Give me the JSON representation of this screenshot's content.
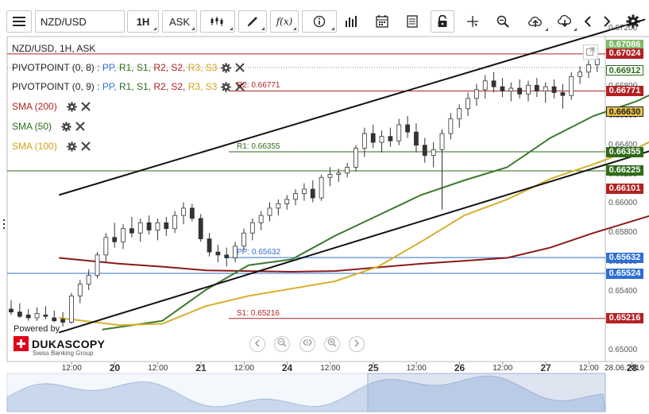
{
  "toolbar": {
    "symbol_value": "NZD/USD",
    "timeframe": "1H",
    "price_type": "ASK",
    "icons": [
      "menu-icon",
      "chart-type-icon",
      "draw-pen-icon",
      "function-icon",
      "info-icon",
      "bar-volume-icon",
      "calendar-icon",
      "document-icon",
      "lock-icon",
      "crosshair-icon",
      "zoom-icon",
      "cloud-upload-icon",
      "cloud-download-icon",
      "chevron-left-icon",
      "chevron-right-icon",
      "gear-icon"
    ]
  },
  "chart_data": {
    "type": "candlestick",
    "title": "NZD/USD, 1H, ASK",
    "ylim": [
      0.6496,
      0.6726
    ],
    "y_ticks": [
      "0.67200",
      "0.67000",
      "0.66800",
      "0.66600",
      "0.66400",
      "0.66200",
      "0.66000",
      "0.65800",
      "0.65600",
      "0.65400",
      "0.65200",
      "0.65000"
    ],
    "x_labels": [
      {
        "text": "12:00",
        "x": 0.5,
        "day": false
      },
      {
        "text": "20",
        "x": 1.0,
        "day": true
      },
      {
        "text": "12:00",
        "x": 1.5,
        "day": false
      },
      {
        "text": "21",
        "x": 2.0,
        "day": true
      },
      {
        "text": "12:00",
        "x": 2.5,
        "day": false
      },
      {
        "text": "24",
        "x": 3.0,
        "day": true
      },
      {
        "text": "12:00",
        "x": 3.5,
        "day": false
      },
      {
        "text": "25",
        "x": 4.0,
        "day": true
      },
      {
        "text": "12:00",
        "x": 4.5,
        "day": false
      },
      {
        "text": "26",
        "x": 5.0,
        "day": true
      },
      {
        "text": "12:00",
        "x": 5.5,
        "day": false
      },
      {
        "text": "27",
        "x": 6.0,
        "day": true
      },
      {
        "text": "12:00",
        "x": 6.5,
        "day": false
      },
      {
        "text": "28",
        "x": 7.0,
        "day": true
      }
    ],
    "date_label": "28.06.2019",
    "levels": [
      {
        "name": "R2",
        "label": "R2: 0.66771",
        "value": 0.66771,
        "color": "#b22222"
      },
      {
        "name": "R1",
        "label": "R1: 0.66355",
        "value": 0.66355,
        "color": "#2e6b1a"
      },
      {
        "name": "PP",
        "label": "PP: 0.65632",
        "value": 0.65632,
        "color": "#2f6fd1"
      },
      {
        "name": "S1",
        "label": "S1: 0.65216",
        "value": 0.65216,
        "color": "#b22222"
      }
    ],
    "extra_lines": [
      {
        "value": 0.67024,
        "color": "#b22222"
      },
      {
        "value": 0.66225,
        "color": "#2e6b1a"
      },
      {
        "value": 0.65524,
        "color": "#2f6fd1"
      }
    ],
    "price_tags": [
      {
        "text": "0.67086",
        "value": 0.67086,
        "bg": "#7fb86a",
        "fg": "#ffffff"
      },
      {
        "text": "0.67024",
        "value": 0.67024,
        "bg": "#b22222",
        "fg": "#ffffff"
      },
      {
        "text": "0.66912",
        "value": 0.66912,
        "bg": "#ffffff",
        "fg": "#2e6b1a",
        "border": "#2e6b1a"
      },
      {
        "text": "0.66771",
        "value": 0.66771,
        "bg": "#b22222",
        "fg": "#ffffff"
      },
      {
        "text": "0.66630",
        "value": 0.6663,
        "bg": "#e8c24a",
        "fg": "#222222",
        "border": "#222222"
      },
      {
        "text": "0.66355",
        "value": 0.66355,
        "bg": "#2e6b1a",
        "fg": "#ffffff"
      },
      {
        "text": "0.66225",
        "value": 0.66225,
        "bg": "#2e6b1a",
        "fg": "#ffffff"
      },
      {
        "text": "0.66101",
        "value": 0.66101,
        "bg": "#b22222",
        "fg": "#ffffff"
      },
      {
        "text": "0.65632",
        "value": 0.65632,
        "bg": "#2f6fd1",
        "fg": "#ffffff"
      },
      {
        "text": "0.65524",
        "value": 0.65524,
        "bg": "#2f6fd1",
        "fg": "#ffffff"
      },
      {
        "text": "0.65216",
        "value": 0.65216,
        "bg": "#b22222",
        "fg": "#ffffff"
      }
    ],
    "sma_lines": [
      {
        "name": "SMA (200)",
        "color": "#8b1a1a",
        "points": [
          [
            -0.2,
            0.6563
          ],
          [
            0.5,
            0.6559
          ],
          [
            1.0,
            0.6557
          ],
          [
            1.5,
            0.65545
          ],
          [
            2.0,
            0.6554
          ],
          [
            2.5,
            0.65535
          ],
          [
            3.0,
            0.6554
          ],
          [
            3.5,
            0.65565
          ],
          [
            4.0,
            0.6559
          ],
          [
            4.5,
            0.6561
          ],
          [
            5.0,
            0.6563
          ],
          [
            5.5,
            0.657
          ],
          [
            6.0,
            0.658
          ],
          [
            6.5,
            0.6589
          ],
          [
            7.0,
            0.6598
          ],
          [
            7.15,
            0.6601
          ]
        ]
      },
      {
        "name": "SMA (50)",
        "color": "#3a7a2a",
        "points": [
          [
            0.3,
            0.6514
          ],
          [
            1.0,
            0.652
          ],
          [
            1.5,
            0.6541
          ],
          [
            2.0,
            0.6558
          ],
          [
            2.5,
            0.6562
          ],
          [
            3.0,
            0.6578
          ],
          [
            3.5,
            0.6592
          ],
          [
            4.0,
            0.6606
          ],
          [
            4.5,
            0.6616
          ],
          [
            5.0,
            0.6625
          ],
          [
            5.5,
            0.6645
          ],
          [
            6.0,
            0.666
          ],
          [
            6.5,
            0.667
          ],
          [
            7.0,
            0.6684
          ],
          [
            7.15,
            0.6691
          ]
        ]
      },
      {
        "name": "SMA (100)",
        "color": "#d4b02c",
        "points": [
          [
            -0.2,
            0.6522
          ],
          [
            0.5,
            0.6517
          ],
          [
            1.0,
            0.6518
          ],
          [
            1.5,
            0.653
          ],
          [
            2.0,
            0.6537
          ],
          [
            2.5,
            0.6542
          ],
          [
            3.0,
            0.6547
          ],
          [
            3.5,
            0.6557
          ],
          [
            4.0,
            0.6574
          ],
          [
            4.5,
            0.6592
          ],
          [
            5.0,
            0.6603
          ],
          [
            5.5,
            0.6617
          ],
          [
            6.0,
            0.6627
          ],
          [
            6.5,
            0.6638
          ],
          [
            7.0,
            0.6652
          ],
          [
            7.15,
            0.6663
          ]
        ]
      }
    ],
    "trend_lines": [
      {
        "points": [
          [
            -0.2,
            0.6606
          ],
          [
            6.6,
            0.6726
          ]
        ],
        "color": "#111111"
      },
      {
        "points": [
          [
            -0.2,
            0.6512
          ],
          [
            7.15,
            0.6645
          ]
        ],
        "color": "#111111"
      }
    ],
    "series": [
      {
        "name": "candles",
        "ohlc": [
          [
            0.0,
            0.6528,
            0.6534,
            0.6524,
            0.6526
          ],
          [
            0.1,
            0.6526,
            0.6532,
            0.6522,
            0.6523
          ],
          [
            0.2,
            0.6524,
            0.6528,
            0.652,
            0.6522
          ],
          [
            0.3,
            0.6522,
            0.6529,
            0.652,
            0.6525
          ],
          [
            0.4,
            0.6524,
            0.653,
            0.6521,
            0.6523
          ],
          [
            0.5,
            0.6522,
            0.6527,
            0.6519,
            0.652
          ],
          [
            0.6,
            0.6521,
            0.6526,
            0.6516,
            0.6519
          ],
          [
            0.7,
            0.6519,
            0.6539,
            0.6518,
            0.6537
          ],
          [
            0.8,
            0.6537,
            0.6548,
            0.6532,
            0.6545
          ],
          [
            0.9,
            0.6545,
            0.6555,
            0.6541,
            0.6551
          ],
          [
            1.0,
            0.6551,
            0.6567,
            0.6549,
            0.6565
          ],
          [
            1.1,
            0.6565,
            0.658,
            0.656,
            0.6577
          ],
          [
            1.2,
            0.6577,
            0.6587,
            0.657,
            0.6574
          ],
          [
            1.3,
            0.6574,
            0.6586,
            0.6569,
            0.6583
          ],
          [
            1.4,
            0.6583,
            0.6591,
            0.6577,
            0.658
          ],
          [
            1.5,
            0.658,
            0.659,
            0.6574,
            0.6587
          ],
          [
            1.6,
            0.6587,
            0.6592,
            0.6579,
            0.6582
          ],
          [
            1.7,
            0.6582,
            0.659,
            0.6575,
            0.6587
          ],
          [
            1.8,
            0.6587,
            0.6591,
            0.6578,
            0.6583
          ],
          [
            1.9,
            0.6583,
            0.6595,
            0.658,
            0.6592
          ],
          [
            2.0,
            0.6592,
            0.6601,
            0.6586,
            0.6597
          ],
          [
            2.1,
            0.6597,
            0.66,
            0.6588,
            0.659
          ],
          [
            2.2,
            0.659,
            0.6593,
            0.6574,
            0.6576
          ],
          [
            2.3,
            0.6576,
            0.658,
            0.6564,
            0.6567
          ],
          [
            2.4,
            0.6567,
            0.6572,
            0.656,
            0.6565
          ],
          [
            2.5,
            0.6565,
            0.657,
            0.6557,
            0.6563
          ],
          [
            2.6,
            0.6563,
            0.6574,
            0.656,
            0.6571
          ],
          [
            2.7,
            0.6571,
            0.6583,
            0.6568,
            0.658
          ],
          [
            2.8,
            0.658,
            0.659,
            0.6575,
            0.6587
          ],
          [
            2.9,
            0.6587,
            0.6595,
            0.6582,
            0.6592
          ],
          [
            3.0,
            0.6592,
            0.6601,
            0.6588,
            0.6597
          ],
          [
            3.1,
            0.6597,
            0.6603,
            0.6592,
            0.66
          ],
          [
            3.2,
            0.66,
            0.6606,
            0.6596,
            0.6603
          ],
          [
            3.3,
            0.6603,
            0.661,
            0.6599,
            0.6607
          ],
          [
            3.4,
            0.6607,
            0.6614,
            0.6602,
            0.661
          ],
          [
            3.5,
            0.661,
            0.6616,
            0.6601,
            0.6604
          ],
          [
            3.6,
            0.6604,
            0.662,
            0.6602,
            0.6618
          ],
          [
            3.7,
            0.6618,
            0.6625,
            0.6612,
            0.662
          ],
          [
            3.8,
            0.662,
            0.6624,
            0.6615,
            0.6621
          ],
          [
            3.9,
            0.6621,
            0.6628,
            0.6618,
            0.6625
          ],
          [
            4.0,
            0.6625,
            0.664,
            0.6622,
            0.6638
          ],
          [
            4.1,
            0.6638,
            0.6652,
            0.6632,
            0.6648
          ],
          [
            4.2,
            0.6648,
            0.6654,
            0.6638,
            0.6642
          ],
          [
            4.3,
            0.6642,
            0.665,
            0.6635,
            0.6646
          ],
          [
            4.4,
            0.6646,
            0.6652,
            0.6639,
            0.6643
          ],
          [
            4.5,
            0.6643,
            0.6658,
            0.664,
            0.6654
          ],
          [
            4.6,
            0.6654,
            0.666,
            0.6645,
            0.6649
          ],
          [
            4.7,
            0.6649,
            0.6655,
            0.6635,
            0.664
          ],
          [
            4.8,
            0.664,
            0.6645,
            0.6628,
            0.6633
          ],
          [
            4.9,
            0.6633,
            0.6642,
            0.6625,
            0.6637
          ],
          [
            5.0,
            0.6637,
            0.6651,
            0.6596,
            0.6648
          ],
          [
            5.1,
            0.6648,
            0.6662,
            0.6644,
            0.6658
          ],
          [
            5.2,
            0.6658,
            0.6668,
            0.6652,
            0.6665
          ],
          [
            5.3,
            0.6665,
            0.6676,
            0.666,
            0.6672
          ],
          [
            5.4,
            0.6672,
            0.6682,
            0.6667,
            0.6678
          ],
          [
            5.5,
            0.6678,
            0.6688,
            0.6672,
            0.6684
          ],
          [
            5.6,
            0.6684,
            0.669,
            0.6676,
            0.668
          ],
          [
            5.7,
            0.668,
            0.6686,
            0.6673,
            0.6677
          ],
          [
            5.8,
            0.6677,
            0.6683,
            0.667,
            0.6679
          ],
          [
            5.9,
            0.6679,
            0.6685,
            0.6672,
            0.6675
          ],
          [
            6.0,
            0.6675,
            0.6684,
            0.667,
            0.6681
          ],
          [
            6.1,
            0.6681,
            0.6686,
            0.6673,
            0.6677
          ],
          [
            6.2,
            0.6677,
            0.6683,
            0.6669,
            0.668
          ],
          [
            6.3,
            0.668,
            0.6685,
            0.6672,
            0.6676
          ],
          [
            6.4,
            0.6676,
            0.6682,
            0.6665,
            0.6674
          ],
          [
            6.5,
            0.6674,
            0.669,
            0.6671,
            0.6687
          ],
          [
            6.6,
            0.6687,
            0.6694,
            0.6682,
            0.669
          ],
          [
            6.7,
            0.669,
            0.6698,
            0.6686,
            0.6695
          ],
          [
            6.8,
            0.6695,
            0.6702,
            0.669,
            0.6699
          ],
          [
            6.9,
            0.6699,
            0.6703,
            0.6694,
            0.67
          ],
          [
            7.0,
            0.67,
            0.6709,
            0.6695,
            0.6702
          ],
          [
            7.05,
            0.6702,
            0.6711,
            0.669,
            0.6695
          ],
          [
            7.1,
            0.6695,
            0.6708,
            0.6692,
            0.6706
          ]
        ]
      }
    ]
  },
  "legend": {
    "pivot1": {
      "name": "PIVOTPOINT (0, 8)",
      "sep": " : ",
      "items": [
        {
          "t": "PP",
          "c": "#2f6fd1"
        },
        {
          "t": "R1",
          "c": "#2e6b1a"
        },
        {
          "t": "S1",
          "c": "#2e6b1a"
        },
        {
          "t": "R2",
          "c": "#b22222"
        },
        {
          "t": "S2",
          "c": "#b22222"
        },
        {
          "t": "R3",
          "c": "#d4a017"
        },
        {
          "t": "S3",
          "c": "#d4a017"
        }
      ]
    },
    "pivot2": {
      "name": "PIVOTPOINT (0, 9)",
      "sep": " : ",
      "items": [
        {
          "t": "PP",
          "c": "#2f6fd1"
        },
        {
          "t": "R1",
          "c": "#2e6b1a"
        },
        {
          "t": "S1",
          "c": "#2e6b1a"
        },
        {
          "t": "R2",
          "c": "#b22222"
        },
        {
          "t": "S2",
          "c": "#b22222"
        },
        {
          "t": "R3",
          "c": "#d4a017"
        },
        {
          "t": "S3",
          "c": "#d4a017"
        }
      ]
    },
    "sma200": {
      "name": "SMA (200)",
      "color": "#b22222"
    },
    "sma50": {
      "name": "SMA (50)",
      "color": "#2e6b1a"
    },
    "sma100": {
      "name": "SMA (100)",
      "color": "#d4a017"
    }
  },
  "brand": {
    "powered": "Powered by",
    "name": "DUKASCOPY",
    "sub": "Swiss Banking Group"
  }
}
